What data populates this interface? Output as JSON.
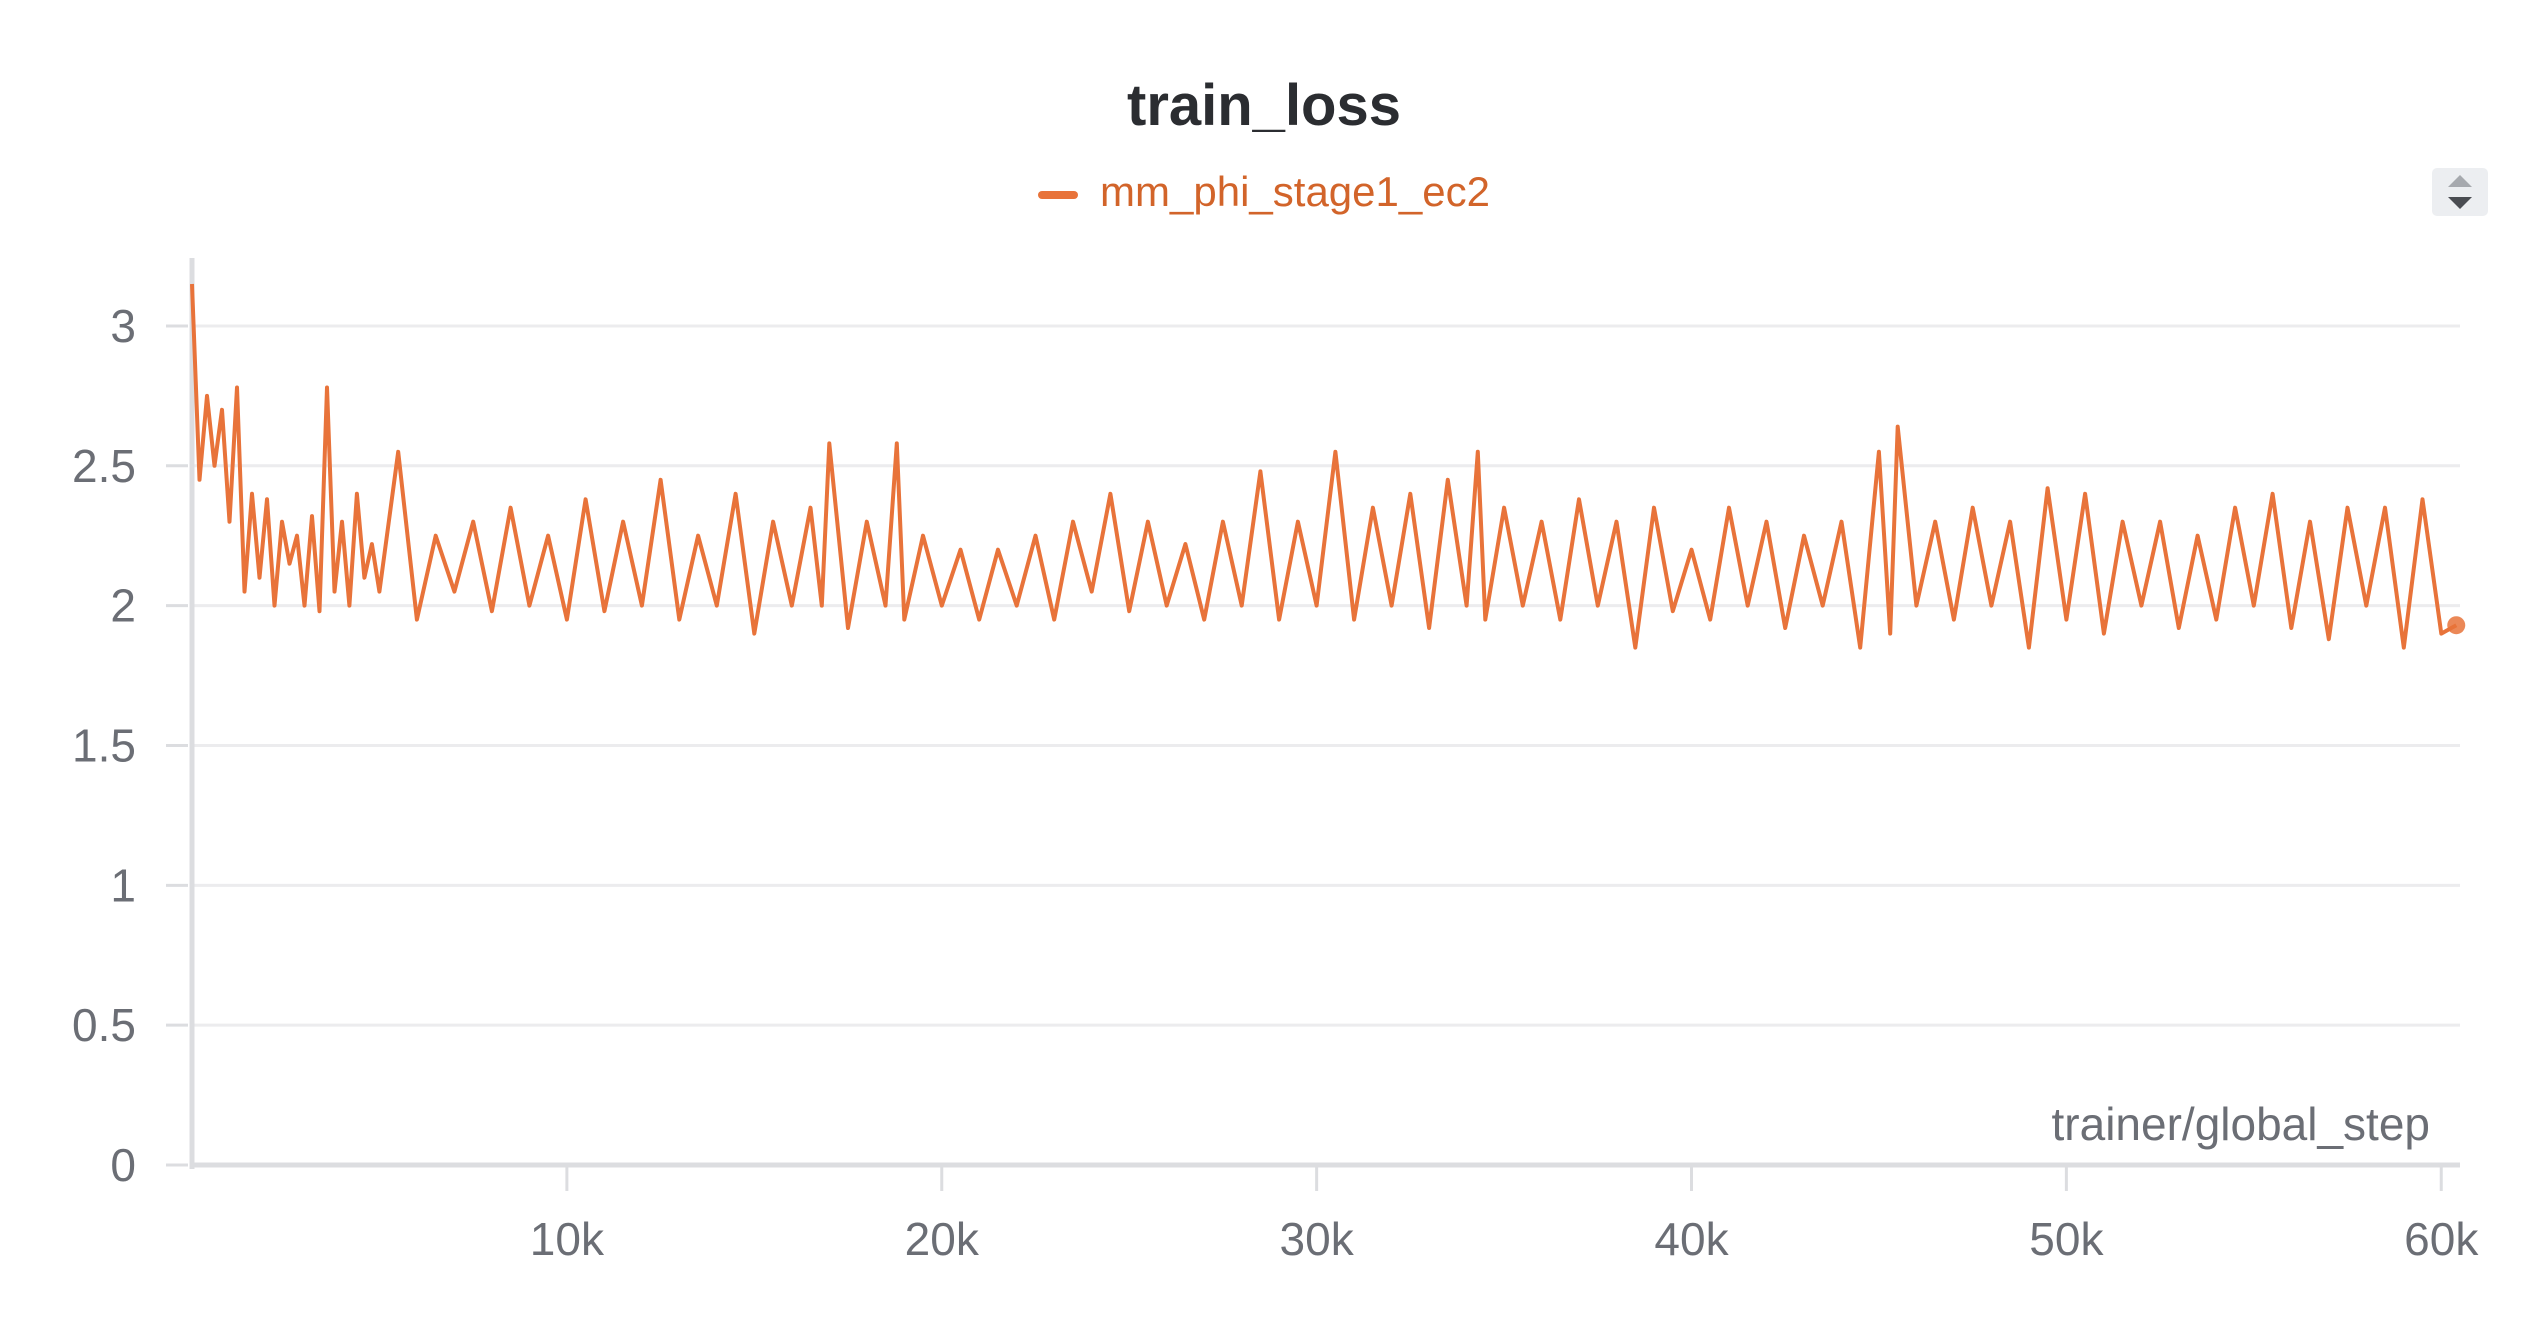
{
  "chart_data": {
    "type": "line",
    "title": "train_loss",
    "xlabel": "trainer/global_step",
    "ylabel": "",
    "xlim": [
      0,
      60500
    ],
    "ylim": [
      0,
      3.2
    ],
    "x_ticks": [
      {
        "value": 10000,
        "label": "10k"
      },
      {
        "value": 20000,
        "label": "20k"
      },
      {
        "value": 30000,
        "label": "30k"
      },
      {
        "value": 40000,
        "label": "40k"
      },
      {
        "value": 50000,
        "label": "50k"
      },
      {
        "value": 60000,
        "label": "60k"
      }
    ],
    "y_ticks": [
      {
        "value": 0,
        "label": "0"
      },
      {
        "value": 0.5,
        "label": "0.5"
      },
      {
        "value": 1,
        "label": "1"
      },
      {
        "value": 1.5,
        "label": "1.5"
      },
      {
        "value": 2,
        "label": "2"
      },
      {
        "value": 2.5,
        "label": "2.5"
      },
      {
        "value": 3,
        "label": "3"
      }
    ],
    "grid": true,
    "legend_position": "top-center",
    "series": [
      {
        "name": "mm_phi_stage1_ec2",
        "color": "#e8733a",
        "x": [
          0,
          200,
          400,
          600,
          800,
          1000,
          1200,
          1400,
          1600,
          1800,
          2000,
          2200,
          2400,
          2600,
          2800,
          3000,
          3200,
          3400,
          3600,
          3800,
          4000,
          4200,
          4400,
          4600,
          4800,
          5000,
          5500,
          6000,
          6500,
          7000,
          7500,
          8000,
          8500,
          9000,
          9500,
          10000,
          10500,
          11000,
          11500,
          12000,
          12500,
          13000,
          13500,
          14000,
          14500,
          15000,
          15500,
          16000,
          16500,
          16800,
          17000,
          17500,
          18000,
          18500,
          18800,
          19000,
          19500,
          20000,
          20500,
          21000,
          21500,
          22000,
          22500,
          23000,
          23500,
          24000,
          24500,
          25000,
          25500,
          26000,
          26500,
          27000,
          27500,
          28000,
          28500,
          29000,
          29500,
          30000,
          30500,
          31000,
          31500,
          32000,
          32500,
          33000,
          33500,
          34000,
          34300,
          34500,
          35000,
          35500,
          36000,
          36500,
          37000,
          37500,
          38000,
          38500,
          39000,
          39500,
          40000,
          40500,
          41000,
          41500,
          42000,
          42500,
          43000,
          43500,
          44000,
          44500,
          45000,
          45300,
          45500,
          46000,
          46500,
          47000,
          47500,
          48000,
          48500,
          49000,
          49500,
          50000,
          50500,
          51000,
          51500,
          52000,
          52500,
          53000,
          53500,
          54000,
          54500,
          55000,
          55500,
          56000,
          56500,
          57000,
          57500,
          58000,
          58500,
          59000,
          59500,
          60000,
          60400
        ],
        "y": [
          3.15,
          2.45,
          2.75,
          2.5,
          2.7,
          2.3,
          2.78,
          2.05,
          2.4,
          2.1,
          2.38,
          2.0,
          2.3,
          2.15,
          2.25,
          2.0,
          2.32,
          1.98,
          2.78,
          2.05,
          2.3,
          2.0,
          2.4,
          2.1,
          2.22,
          2.05,
          2.55,
          1.95,
          2.25,
          2.05,
          2.3,
          1.98,
          2.35,
          2.0,
          2.25,
          1.95,
          2.38,
          1.98,
          2.3,
          2.0,
          2.45,
          1.95,
          2.25,
          2.0,
          2.4,
          1.9,
          2.3,
          2.0,
          2.35,
          2.0,
          2.58,
          1.92,
          2.3,
          2.0,
          2.58,
          1.95,
          2.25,
          2.0,
          2.2,
          1.95,
          2.2,
          2.0,
          2.25,
          1.95,
          2.3,
          2.05,
          2.4,
          1.98,
          2.3,
          2.0,
          2.22,
          1.95,
          2.3,
          2.0,
          2.48,
          1.95,
          2.3,
          2.0,
          2.55,
          1.95,
          2.35,
          2.0,
          2.4,
          1.92,
          2.45,
          2.0,
          2.55,
          1.95,
          2.35,
          2.0,
          2.3,
          1.95,
          2.38,
          2.0,
          2.3,
          1.85,
          2.35,
          1.98,
          2.2,
          1.95,
          2.35,
          2.0,
          2.3,
          1.92,
          2.25,
          2.0,
          2.3,
          1.85,
          2.55,
          1.9,
          2.64,
          2.0,
          2.3,
          1.95,
          2.35,
          2.0,
          2.3,
          1.85,
          2.42,
          1.95,
          2.4,
          1.9,
          2.3,
          2.0,
          2.3,
          1.92,
          2.25,
          1.95,
          2.35,
          2.0,
          2.4,
          1.92,
          2.3,
          1.88,
          2.35,
          2.0,
          2.35,
          1.85,
          2.38,
          1.9,
          1.93
        ]
      }
    ]
  }
}
